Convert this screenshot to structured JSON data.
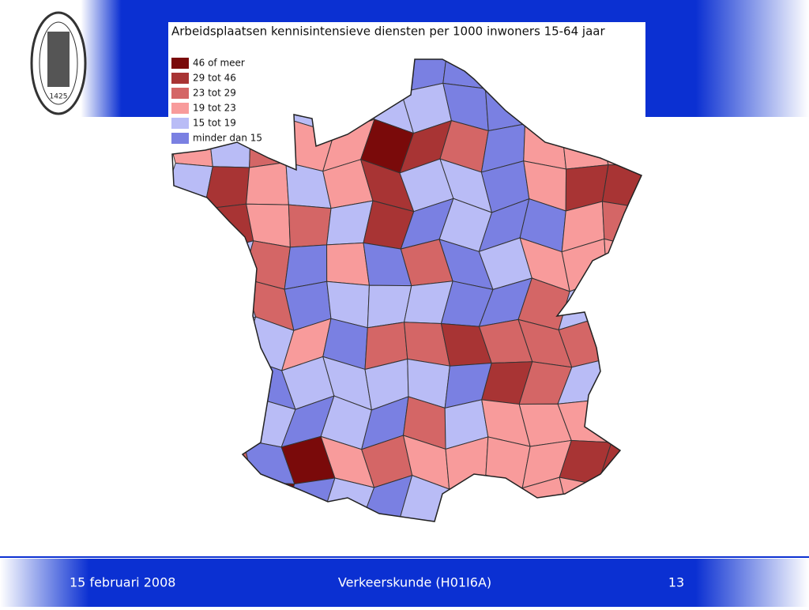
{
  "logo": {
    "year": "1425"
  },
  "map": {
    "title": "Arbeidsplaatsen kennisintensieve diensten per 1000 inwoners 15-64 jaar",
    "legend": [
      {
        "label": "46 of meer",
        "color": "#7a0a0a"
      },
      {
        "label": "29 tot 46",
        "color": "#a83434"
      },
      {
        "label": "23 tot 29",
        "color": "#d46666"
      },
      {
        "label": "19 tot 23",
        "color": "#f89b9b"
      },
      {
        "label": "15 tot 19",
        "color": "#b9bcf6"
      },
      {
        "label": "minder dan 15",
        "color": "#7a80e2"
      }
    ]
  },
  "footer": {
    "date": "15 februari 2008",
    "course": "Verkeerskunde (H01I6A)",
    "page": "13"
  }
}
